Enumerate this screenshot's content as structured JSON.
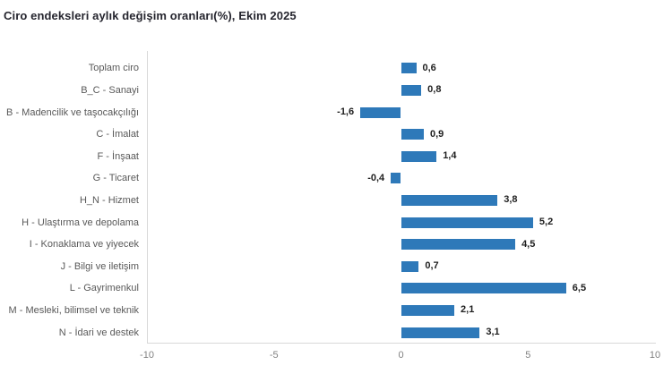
{
  "title": "Ciro endeksleri aylık değişim oranları(%), Ekim 2025",
  "colors": {
    "bar": "#2e79b9",
    "title_text": "#25252e",
    "category_label": "#595959",
    "value_label": "#1f1f1f",
    "tick_label": "#828282",
    "axis_line": "#d8d8d8",
    "background": "#ffffff"
  },
  "chart_data": {
    "type": "bar",
    "orientation": "horizontal",
    "title": "Ciro endeksleri aylık değişim oranları(%), Ekim 2025",
    "xlabel": "",
    "ylabel": "",
    "xlim": [
      -10,
      10
    ],
    "x_ticks": [
      -10,
      -5,
      0,
      5,
      10
    ],
    "x_tick_labels": [
      "-10",
      "-5",
      "0",
      "5",
      "10"
    ],
    "grid": false,
    "legend": false,
    "categories": [
      "Toplam ciro",
      "B_C - Sanayi",
      "B - Madencilik ve taşocakçılığı",
      "C - İmalat",
      "F - İnşaat",
      "G - Ticaret",
      "H_N - Hizmet",
      "H - Ulaştırma ve depolama",
      "I - Konaklama ve yiyecek",
      "J - Bilgi ve iletişim",
      "L - Gayrimenkul",
      "M - Mesleki, bilimsel ve teknik",
      "N - İdari ve destek"
    ],
    "values": [
      0.6,
      0.8,
      -1.6,
      0.9,
      1.4,
      -0.4,
      3.8,
      5.2,
      4.5,
      0.7,
      6.5,
      2.1,
      3.1
    ],
    "value_labels": [
      "0,6",
      "0,8",
      "-1,6",
      "0,9",
      "1,4",
      "-0,4",
      "3,8",
      "5,2",
      "4,5",
      "0,7",
      "6,5",
      "2,1",
      "3,1"
    ]
  }
}
